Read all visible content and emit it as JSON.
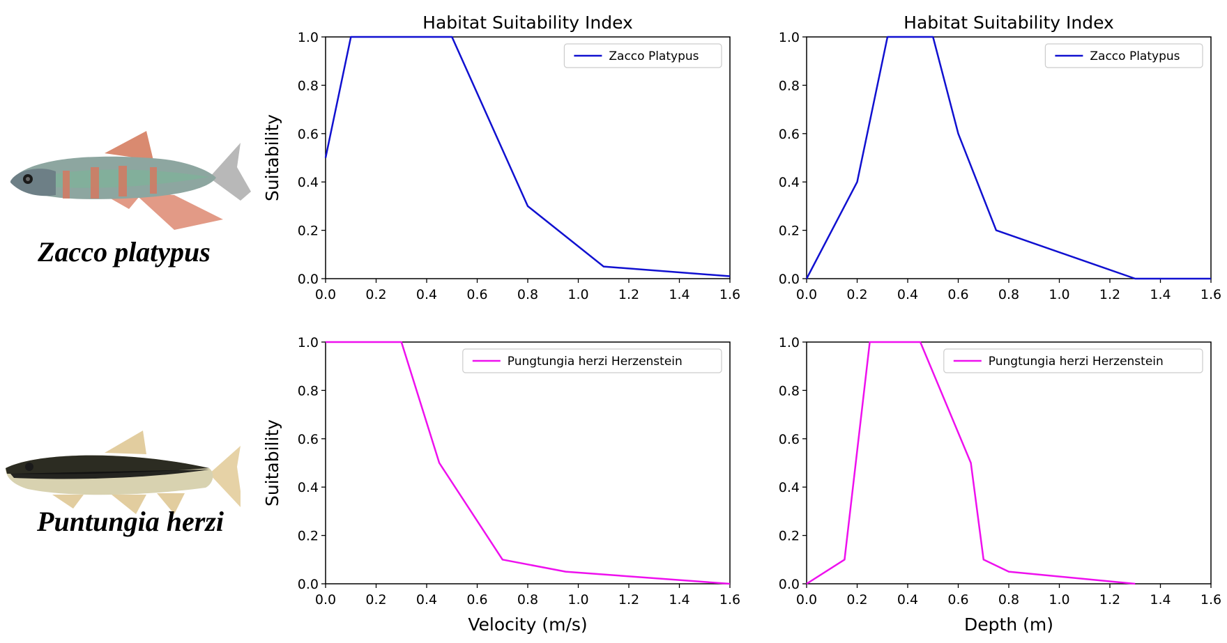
{
  "species": {
    "top": "Zacco platypus",
    "bottom": "Puntungia herzi"
  },
  "chart_data": [
    {
      "type": "line",
      "title": "Habitat Suitability Index",
      "xlabel": "",
      "ylabel": "Suitability",
      "xlim": [
        0,
        1.6
      ],
      "ylim": [
        0,
        1.0
      ],
      "xticks": [
        "0.0",
        "0.2",
        "0.4",
        "0.6",
        "0.8",
        "1.0",
        "1.2",
        "1.4",
        "1.6"
      ],
      "yticks": [
        "0.0",
        "0.2",
        "0.4",
        "0.6",
        "0.8",
        "1.0"
      ],
      "legend": "top-right",
      "series": [
        {
          "name": "Zacco Platypus",
          "color": "#1010d0",
          "x": [
            0.0,
            0.1,
            0.5,
            0.8,
            1.1,
            1.6
          ],
          "y": [
            0.5,
            1.0,
            1.0,
            0.3,
            0.05,
            0.01
          ]
        }
      ]
    },
    {
      "type": "line",
      "title": "Habitat Suitability Index",
      "xlabel": "",
      "ylabel": "",
      "xlim": [
        0,
        1.6
      ],
      "ylim": [
        0,
        1.0
      ],
      "xticks": [
        "0.0",
        "0.2",
        "0.4",
        "0.6",
        "0.8",
        "1.0",
        "1.2",
        "1.4",
        "1.6"
      ],
      "yticks": [
        "0.0",
        "0.2",
        "0.4",
        "0.6",
        "0.8",
        "1.0"
      ],
      "legend": "top-right",
      "series": [
        {
          "name": "Zacco Platypus",
          "color": "#1010d0",
          "x": [
            0.0,
            0.2,
            0.32,
            0.5,
            0.6,
            0.75,
            1.3,
            1.6
          ],
          "y": [
            0.0,
            0.4,
            1.0,
            1.0,
            0.6,
            0.2,
            0.0,
            0.0
          ]
        }
      ]
    },
    {
      "type": "line",
      "title": "",
      "xlabel": "Velocity (m/s)",
      "ylabel": "Suitability",
      "xlim": [
        0,
        1.6
      ],
      "ylim": [
        0,
        1.0
      ],
      "xticks": [
        "0.0",
        "0.2",
        "0.4",
        "0.6",
        "0.8",
        "1.0",
        "1.2",
        "1.4",
        "1.6"
      ],
      "yticks": [
        "0.0",
        "0.2",
        "0.4",
        "0.6",
        "0.8",
        "1.0"
      ],
      "legend": "top-right",
      "series": [
        {
          "name": "Pungtungia herzi Herzenstein",
          "color": "#ee10ee",
          "x": [
            0.0,
            0.3,
            0.45,
            0.7,
            0.95,
            1.6
          ],
          "y": [
            1.0,
            1.0,
            0.5,
            0.1,
            0.05,
            0.0
          ]
        }
      ]
    },
    {
      "type": "line",
      "title": "",
      "xlabel": "Depth (m)",
      "ylabel": "",
      "xlim": [
        0,
        1.6
      ],
      "ylim": [
        0,
        1.0
      ],
      "xticks": [
        "0.0",
        "0.2",
        "0.4",
        "0.6",
        "0.8",
        "1.0",
        "1.2",
        "1.4",
        "1.6"
      ],
      "yticks": [
        "0.0",
        "0.2",
        "0.4",
        "0.6",
        "0.8",
        "1.0"
      ],
      "legend": "top-right",
      "series": [
        {
          "name": "Pungtungia herzi Herzenstein",
          "color": "#ee10ee",
          "x": [
            0.0,
            0.15,
            0.25,
            0.45,
            0.65,
            0.7,
            0.8,
            1.3
          ],
          "y": [
            0.0,
            0.1,
            1.0,
            1.0,
            0.5,
            0.1,
            0.05,
            0.0
          ]
        }
      ]
    }
  ]
}
